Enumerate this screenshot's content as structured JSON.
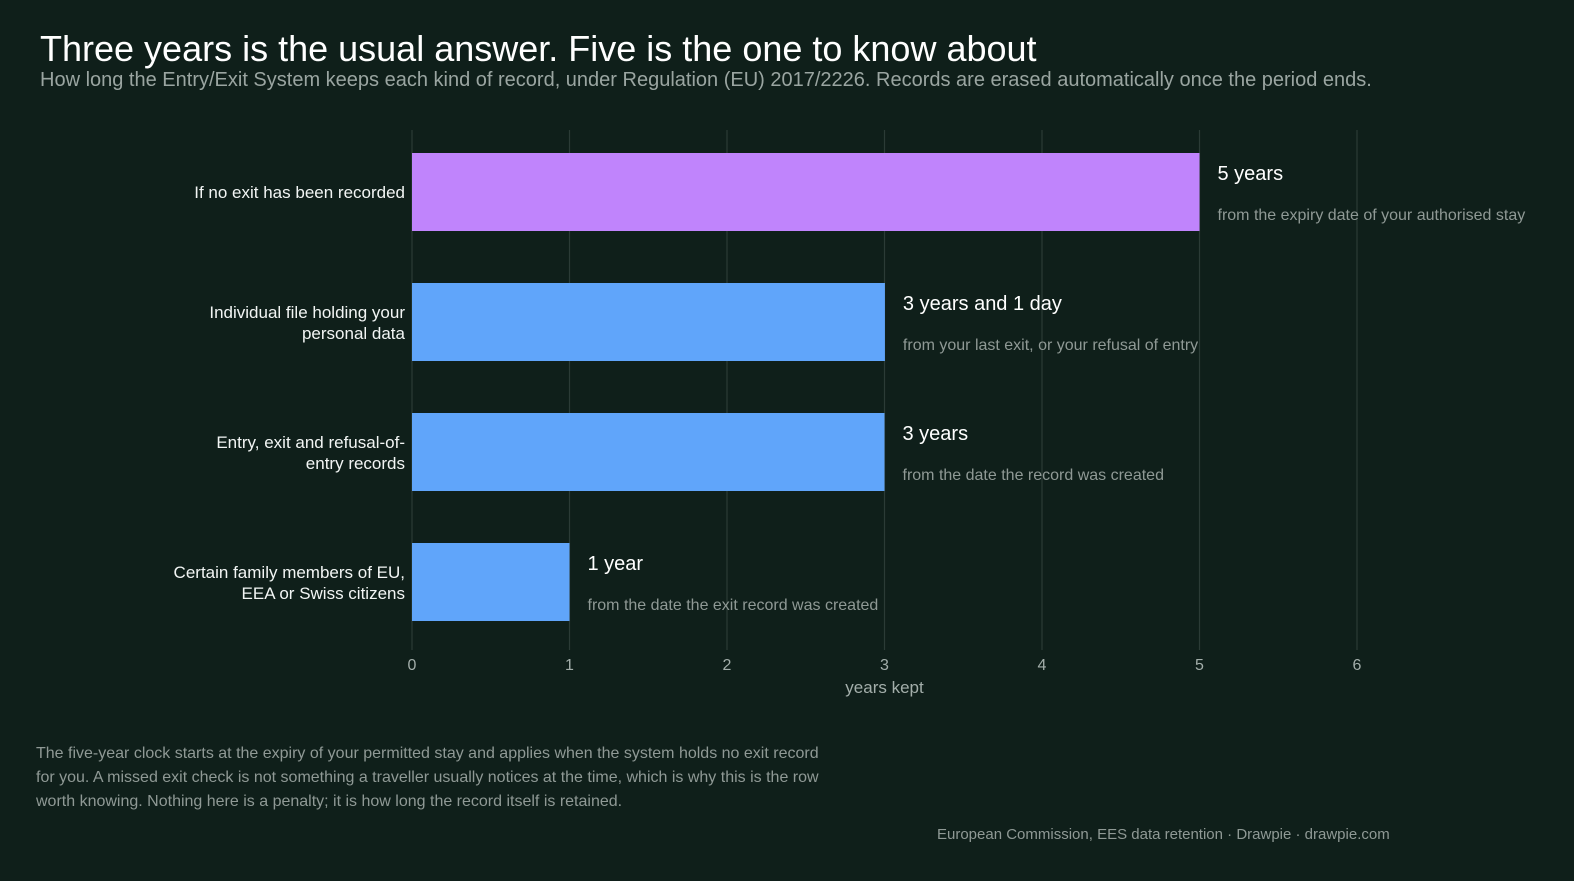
{
  "header": {
    "title": "Three years is the usual answer. Five is the one to know about",
    "subtitle": "How long the Entry/Exit System keeps each kind of record, under Regulation (EU) 2017/2226. Records are erased automatically once the period ends."
  },
  "chart_data": {
    "type": "bar",
    "orientation": "horizontal",
    "categories": [
      [
        "If no exit has been recorded"
      ],
      [
        "Individual file holding your",
        "personal data"
      ],
      [
        "Entry, exit and refusal-of-",
        "entry records"
      ],
      [
        "Certain family members of EU,",
        "EEA or Swiss citizens"
      ]
    ],
    "values": [
      5,
      3.0027,
      3,
      1
    ],
    "value_labels": [
      "5 years",
      "3 years and 1 day",
      "3 years",
      "1 year"
    ],
    "sublabels": [
      "from the expiry date of your authorised stay",
      "from your last exit, or your refusal of entry",
      "from the date the record was created",
      "from the date the exit record was created"
    ],
    "colors": [
      "#c084fc",
      "#60a5fa",
      "#60a5fa",
      "#60a5fa"
    ],
    "xlabel": "years kept",
    "xlim": [
      0,
      6
    ],
    "xticks": [
      0,
      1,
      2,
      3,
      4,
      5,
      6
    ],
    "grid": true,
    "legend": "none"
  },
  "footer": {
    "note": "The five-year clock starts at the expiry of your permitted stay and applies when the system holds no exit record for you. A missed exit check is not something a traveller usually notices at the time, which is why this is the row worth knowing. Nothing here is a penalty; it is how long the record itself is retained.",
    "source": "European Commission, EES data retention  ·  Drawpie · drawpie.com"
  }
}
